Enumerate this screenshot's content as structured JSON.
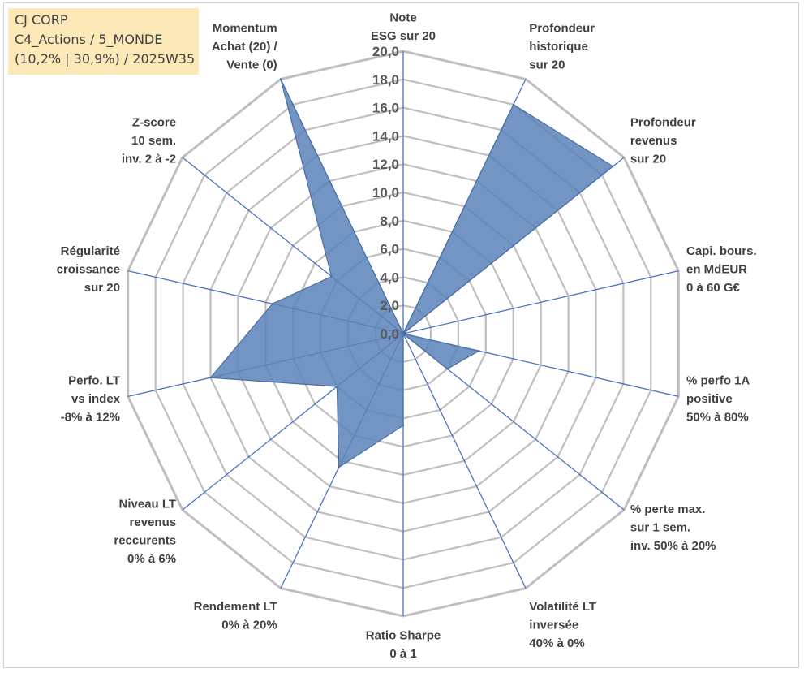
{
  "header": {
    "company": "CJ CORP",
    "category": "C4_Actions / 5_MONDE",
    "summary": "(10,2% | 30,9%) / 2025W35"
  },
  "chart_data": {
    "type": "radar",
    "rmax": 20,
    "tick_values": [
      0,
      2,
      4,
      6,
      8,
      10,
      12,
      14,
      16,
      18,
      20
    ],
    "tick_labels": [
      "0,0",
      "2,0",
      "4,0",
      "6,0",
      "8,0",
      "10,0",
      "12,0",
      "14,0",
      "16,0",
      "18,0",
      "20,0"
    ],
    "categories": [
      [
        "Note",
        "ESG sur 20"
      ],
      [
        "Profondeur",
        "historique",
        "sur 20"
      ],
      [
        "Profondeur",
        "revenus",
        "sur 20"
      ],
      [
        "Capi. bours.",
        "en MdEUR",
        "0 à 60 G€"
      ],
      [
        "% perfo 1A",
        "positive",
        "50% à 80%"
      ],
      [
        "% perte max.",
        "sur 1 sem.",
        "inv. 50% à 20%"
      ],
      [
        "Volatilité LT",
        "inversée",
        "40% à 0%"
      ],
      [
        "Ratio Sharpe",
        "0 à 1"
      ],
      [
        "Rendement LT",
        "0% à 20%"
      ],
      [
        "Niveau LT",
        "revenus",
        "reccurents",
        "0% à 6%"
      ],
      [
        "Perfo. LT",
        "vs index",
        "-8% à 12%"
      ],
      [
        "Régularité",
        "croissance",
        "sur 20"
      ],
      [
        "Z-score",
        "10 sem.",
        "inv. 2 à -2"
      ],
      [
        "Momentum",
        "Achat (20) /",
        "Vente (0)"
      ]
    ],
    "series": [
      {
        "values": [
          0.0,
          18.0,
          19.0,
          0.0,
          5.5,
          4.0,
          0.0,
          6.5,
          10.5,
          6.0,
          14.0,
          9.5,
          6.5,
          20.0
        ],
        "color": "#5b82b8"
      }
    ],
    "grid_color": "#bfbfbf",
    "spoke_color": "#4a72c0",
    "grid": true,
    "legend": "none"
  }
}
